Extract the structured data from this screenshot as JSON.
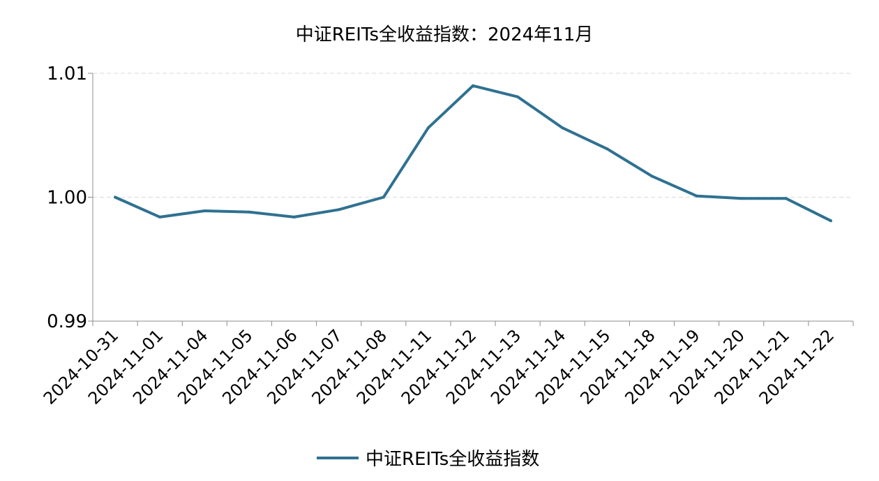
{
  "chart_data": {
    "type": "line",
    "title": "中证REITs全收益指数：2024年11月",
    "xlabel": "",
    "ylabel": "",
    "categories": [
      "2024-10-31",
      "2024-11-01",
      "2024-11-04",
      "2024-11-05",
      "2024-11-06",
      "2024-11-07",
      "2024-11-08",
      "2024-11-11",
      "2024-11-12",
      "2024-11-13",
      "2024-11-14",
      "2024-11-15",
      "2024-11-18",
      "2024-11-19",
      "2024-11-20",
      "2024-11-21",
      "2024-11-22"
    ],
    "series": [
      {
        "name": "中证REITs全收益指数",
        "values": [
          1.0,
          0.9984,
          0.9989,
          0.9988,
          0.9984,
          0.999,
          1.0,
          1.0056,
          1.009,
          1.0081,
          1.0056,
          1.0039,
          1.0017,
          1.0001,
          0.9999,
          0.9999,
          0.9981
        ],
        "color": "#2f7191"
      }
    ],
    "ylim": [
      0.99,
      1.01
    ],
    "yticks": [
      "0.99",
      "1.00",
      "1.01"
    ],
    "grid": "horizontal dashed",
    "legend": "bottom-center"
  }
}
